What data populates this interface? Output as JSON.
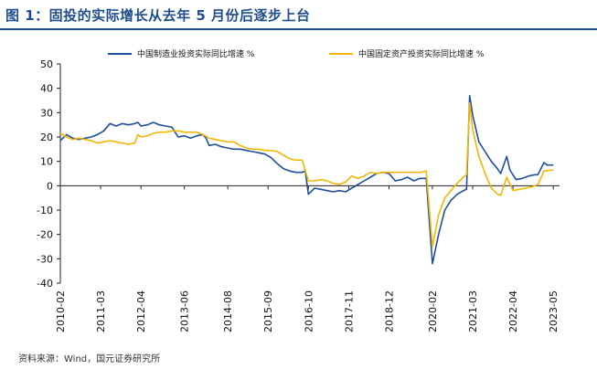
{
  "header": {
    "title": "图 1：固投的实际增长从去年 5 月份后逐步上台"
  },
  "footer": {
    "source": "资料来源：Wind，国元证券研究所"
  },
  "chart_data": {
    "type": "line",
    "title": "",
    "xlabel": "",
    "ylabel": "",
    "ylim": [
      -40,
      50
    ],
    "yticks": [
      -40,
      -30,
      -20,
      -10,
      0,
      10,
      20,
      30,
      40,
      50
    ],
    "xlim": [
      "2010-02",
      "2023-07"
    ],
    "xticks": [
      "2010-02",
      "2011-03",
      "2012-04",
      "2013-06",
      "2014-08",
      "2015-09",
      "2016-10",
      "2017-11",
      "2018-12",
      "2020-02",
      "2021-03",
      "2022-04",
      "2023-05"
    ],
    "grid": false,
    "legend": "top",
    "series": [
      {
        "name": "中国制造业投资实际同比增速 %",
        "color": "#1f4e9c",
        "points": [
          [
            "2010-02",
            18.5
          ],
          [
            "2010-04",
            21.0
          ],
          [
            "2010-06",
            19.5
          ],
          [
            "2010-08",
            19.0
          ],
          [
            "2010-10",
            19.5
          ],
          [
            "2010-12",
            20.0
          ],
          [
            "2011-02",
            21.0
          ],
          [
            "2011-04",
            22.5
          ],
          [
            "2011-05",
            24.0
          ],
          [
            "2011-06",
            25.5
          ],
          [
            "2011-08",
            24.5
          ],
          [
            "2011-10",
            25.5
          ],
          [
            "2011-12",
            25.0
          ],
          [
            "2012-02",
            25.5
          ],
          [
            "2012-03",
            26.0
          ],
          [
            "2012-04",
            24.5
          ],
          [
            "2012-06",
            25.0
          ],
          [
            "2012-08",
            26.0
          ],
          [
            "2012-10",
            25.0
          ],
          [
            "2012-12",
            24.5
          ],
          [
            "2013-02",
            24.0
          ],
          [
            "2013-04",
            20.0
          ],
          [
            "2013-06",
            20.5
          ],
          [
            "2013-08",
            19.5
          ],
          [
            "2013-10",
            20.5
          ],
          [
            "2013-12",
            21.0
          ],
          [
            "2014-01",
            19.5
          ],
          [
            "2014-02",
            16.5
          ],
          [
            "2014-04",
            17.0
          ],
          [
            "2014-06",
            16.0
          ],
          [
            "2014-08",
            15.5
          ],
          [
            "2014-10",
            15.0
          ],
          [
            "2014-12",
            15.0
          ],
          [
            "2015-02",
            14.5
          ],
          [
            "2015-04",
            14.0
          ],
          [
            "2015-06",
            13.5
          ],
          [
            "2015-08",
            13.0
          ],
          [
            "2015-10",
            11.5
          ],
          [
            "2015-12",
            9.0
          ],
          [
            "2016-02",
            7.0
          ],
          [
            "2016-04",
            6.0
          ],
          [
            "2016-06",
            5.5
          ],
          [
            "2016-08",
            5.5
          ],
          [
            "2016-09",
            6.0
          ],
          [
            "2016-10",
            -3.5
          ],
          [
            "2016-12",
            -1.0
          ],
          [
            "2017-02",
            -1.5
          ],
          [
            "2017-04",
            -2.0
          ],
          [
            "2017-06",
            -2.5
          ],
          [
            "2017-08",
            -2.0
          ],
          [
            "2017-10",
            -2.5
          ],
          [
            "2017-12",
            -1.0
          ],
          [
            "2018-02",
            0.5
          ],
          [
            "2018-04",
            2.0
          ],
          [
            "2018-06",
            3.5
          ],
          [
            "2018-08",
            5.0
          ],
          [
            "2018-10",
            5.5
          ],
          [
            "2018-12",
            5.0
          ],
          [
            "2019-02",
            2.0
          ],
          [
            "2019-04",
            2.5
          ],
          [
            "2019-06",
            3.5
          ],
          [
            "2019-08",
            2.0
          ],
          [
            "2019-10",
            3.0
          ],
          [
            "2019-12",
            3.0
          ],
          [
            "2020-02",
            -32.0
          ],
          [
            "2020-04",
            -20.0
          ],
          [
            "2020-06",
            -10.0
          ],
          [
            "2020-08",
            -6.0
          ],
          [
            "2020-10",
            -3.5
          ],
          [
            "2020-12",
            -2.0
          ],
          [
            "2021-01",
            -1.5
          ],
          [
            "2021-02",
            37.0
          ],
          [
            "2021-03",
            29.0
          ],
          [
            "2021-05",
            18.0
          ],
          [
            "2021-07",
            14.0
          ],
          [
            "2021-09",
            10.0
          ],
          [
            "2021-11",
            7.0
          ],
          [
            "2021-12",
            5.0
          ],
          [
            "2022-02",
            12.0
          ],
          [
            "2022-03",
            6.5
          ],
          [
            "2022-05",
            2.5
          ],
          [
            "2022-07",
            3.0
          ],
          [
            "2022-09",
            4.0
          ],
          [
            "2022-11",
            4.5
          ],
          [
            "2022-12",
            4.5
          ],
          [
            "2023-02",
            9.5
          ],
          [
            "2023-03",
            8.5
          ],
          [
            "2023-05",
            8.5
          ]
        ]
      },
      {
        "name": "中国固定资产投资实际同比增速 %",
        "color": "#f2b705",
        "points": [
          [
            "2010-02",
            21.5
          ],
          [
            "2010-04",
            20.0
          ],
          [
            "2010-06",
            19.0
          ],
          [
            "2010-08",
            19.5
          ],
          [
            "2010-10",
            19.0
          ],
          [
            "2010-12",
            18.5
          ],
          [
            "2011-02",
            17.5
          ],
          [
            "2011-04",
            18.0
          ],
          [
            "2011-06",
            18.5
          ],
          [
            "2011-08",
            18.0
          ],
          [
            "2011-10",
            17.5
          ],
          [
            "2011-12",
            17.0
          ],
          [
            "2012-02",
            17.5
          ],
          [
            "2012-03",
            21.0
          ],
          [
            "2012-04",
            20.0
          ],
          [
            "2012-06",
            20.5
          ],
          [
            "2012-08",
            21.5
          ],
          [
            "2012-10",
            22.0
          ],
          [
            "2012-12",
            22.0
          ],
          [
            "2013-02",
            22.5
          ],
          [
            "2013-04",
            22.5
          ],
          [
            "2013-06",
            22.0
          ],
          [
            "2013-08",
            22.0
          ],
          [
            "2013-10",
            22.0
          ],
          [
            "2013-12",
            21.0
          ],
          [
            "2014-02",
            19.5
          ],
          [
            "2014-04",
            19.0
          ],
          [
            "2014-06",
            18.5
          ],
          [
            "2014-08",
            18.0
          ],
          [
            "2014-10",
            18.0
          ],
          [
            "2014-12",
            16.5
          ],
          [
            "2015-02",
            15.5
          ],
          [
            "2015-04",
            15.0
          ],
          [
            "2015-06",
            15.0
          ],
          [
            "2015-08",
            14.5
          ],
          [
            "2015-10",
            14.5
          ],
          [
            "2015-12",
            14.0
          ],
          [
            "2016-02",
            12.5
          ],
          [
            "2016-04",
            11.0
          ],
          [
            "2016-06",
            10.5
          ],
          [
            "2016-08",
            10.5
          ],
          [
            "2016-10",
            2.0
          ],
          [
            "2016-12",
            2.0
          ],
          [
            "2017-02",
            2.5
          ],
          [
            "2017-04",
            2.0
          ],
          [
            "2017-06",
            1.0
          ],
          [
            "2017-08",
            0.5
          ],
          [
            "2017-10",
            1.5
          ],
          [
            "2017-12",
            4.0
          ],
          [
            "2018-02",
            3.0
          ],
          [
            "2018-04",
            4.0
          ],
          [
            "2018-06",
            5.5
          ],
          [
            "2018-08",
            5.0
          ],
          [
            "2018-10",
            5.5
          ],
          [
            "2018-12",
            5.5
          ],
          [
            "2019-02",
            5.5
          ],
          [
            "2019-04",
            5.5
          ],
          [
            "2019-06",
            5.5
          ],
          [
            "2019-08",
            5.5
          ],
          [
            "2019-10",
            5.5
          ],
          [
            "2019-12",
            6.0
          ],
          [
            "2020-02",
            -25.0
          ],
          [
            "2020-04",
            -12.0
          ],
          [
            "2020-06",
            -5.0
          ],
          [
            "2020-08",
            -2.0
          ],
          [
            "2020-10",
            1.0
          ],
          [
            "2020-12",
            3.5
          ],
          [
            "2021-01",
            4.5
          ],
          [
            "2021-02",
            34.0
          ],
          [
            "2021-03",
            23.0
          ],
          [
            "2021-05",
            12.0
          ],
          [
            "2021-07",
            5.0
          ],
          [
            "2021-09",
            -1.0
          ],
          [
            "2021-11",
            -3.5
          ],
          [
            "2021-12",
            -4.0
          ],
          [
            "2022-02",
            3.5
          ],
          [
            "2022-04",
            -2.0
          ],
          [
            "2022-06",
            -1.5
          ],
          [
            "2022-08",
            -1.0
          ],
          [
            "2022-10",
            -0.5
          ],
          [
            "2022-12",
            0.5
          ],
          [
            "2023-02",
            6.0
          ],
          [
            "2023-05",
            6.5
          ]
        ]
      }
    ]
  }
}
